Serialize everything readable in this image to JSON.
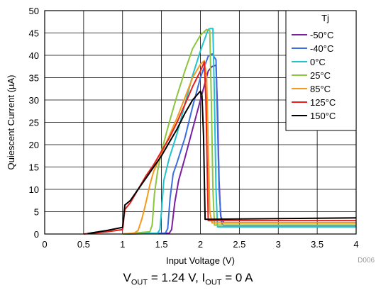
{
  "chart_data": {
    "type": "line",
    "xlabel": "Input Voltage (V)",
    "ylabel": "Quiescent Current (µA)",
    "xlim": [
      0,
      4
    ],
    "ylim": [
      0,
      50
    ],
    "xticks": [
      0,
      0.5,
      1,
      1.5,
      2,
      2.5,
      3,
      3.5,
      4
    ],
    "xtick_labels": [
      "0",
      "0.5",
      "1",
      "1.5",
      "2",
      "2.5",
      "3",
      "3.5",
      "4"
    ],
    "yticks": [
      0,
      5,
      10,
      15,
      20,
      25,
      30,
      35,
      40,
      45,
      50
    ],
    "ytick_labels": [
      "0",
      "5",
      "10",
      "15",
      "20",
      "25",
      "30",
      "35",
      "40",
      "45",
      "50"
    ],
    "grid": true,
    "legend_title": "Tj",
    "legend_position": "top-right",
    "figure_id": "D006",
    "series": [
      {
        "name": "-50°C",
        "color": "#7b1fa2",
        "x": [
          1.0,
          1.6,
          1.63,
          1.67,
          1.72,
          1.8,
          1.9,
          2.0,
          2.1,
          2.15,
          2.2,
          2.22,
          2.24,
          2.26,
          2.3,
          4.0
        ],
        "y": [
          0,
          0.2,
          1.0,
          7.0,
          12.0,
          17.0,
          23.5,
          30.0,
          36.5,
          37.5,
          37.8,
          28.0,
          12.0,
          4.0,
          2.5,
          2.5
        ]
      },
      {
        "name": "-40°C",
        "color": "#3b6fe0",
        "x": [
          1.0,
          1.55,
          1.58,
          1.61,
          1.65,
          1.7,
          1.8,
          1.9,
          2.0,
          2.1,
          2.15,
          2.2,
          2.22,
          2.24,
          2.27,
          2.3,
          4.0
        ],
        "y": [
          0,
          0.2,
          1.2,
          8.0,
          13.5,
          16.0,
          21.5,
          28.5,
          35.0,
          39.8,
          40.3,
          39.0,
          25.0,
          10.0,
          2.5,
          1.8,
          1.8
        ]
      },
      {
        "name": "0°C",
        "color": "#1fc4cc",
        "x": [
          1.0,
          1.45,
          1.48,
          1.5,
          1.53,
          1.6,
          1.7,
          1.8,
          1.9,
          2.0,
          2.1,
          2.13,
          2.16,
          2.18,
          2.2,
          2.22,
          4.0
        ],
        "y": [
          0,
          0.2,
          1.0,
          5.0,
          12.0,
          17.0,
          22.5,
          29.0,
          35.5,
          41.0,
          45.8,
          46.0,
          46.0,
          30.0,
          10.0,
          1.6,
          1.6
        ]
      },
      {
        "name": "25°C",
        "color": "#8cc63f",
        "x": [
          1.0,
          1.35,
          1.38,
          1.41,
          1.45,
          1.5,
          1.6,
          1.7,
          1.8,
          1.9,
          2.0,
          2.08,
          2.12,
          2.14,
          2.16,
          2.18,
          4.0
        ],
        "y": [
          0,
          0.5,
          2.0,
          9.0,
          14.0,
          18.5,
          25.0,
          31.0,
          36.5,
          41.5,
          44.5,
          45.8,
          45.5,
          30.0,
          10.0,
          2.0,
          2.0
        ]
      },
      {
        "name": "85°C",
        "color": "#f59a1d",
        "x": [
          1.0,
          1.15,
          1.2,
          1.25,
          1.3,
          1.35,
          1.4,
          1.5,
          1.6,
          1.7,
          1.8,
          1.9,
          2.0,
          2.05,
          2.08,
          2.1,
          2.12,
          2.15,
          4.0
        ],
        "y": [
          0,
          0.2,
          0.8,
          3.5,
          7.0,
          11.0,
          14.0,
          18.0,
          22.0,
          26.0,
          30.5,
          35.0,
          38.0,
          38.8,
          35.0,
          20.0,
          5.0,
          2.5,
          2.5
        ]
      },
      {
        "name": "125°C",
        "color": "#e8211c",
        "x": [
          0.5,
          0.8,
          1.0,
          1.03,
          1.1,
          1.2,
          1.3,
          1.4,
          1.5,
          1.6,
          1.7,
          1.8,
          1.9,
          2.0,
          2.05,
          2.07,
          2.1,
          4.0
        ],
        "y": [
          0,
          0.5,
          1.0,
          5.5,
          7.0,
          10.0,
          13.0,
          15.5,
          18.5,
          21.5,
          25.0,
          29.0,
          33.0,
          36.5,
          38.5,
          30.0,
          3.0,
          3.0
        ]
      },
      {
        "name": "150°C",
        "color": "#000000",
        "x": [
          0.55,
          0.8,
          1.0,
          1.03,
          1.1,
          1.2,
          1.3,
          1.4,
          1.5,
          1.6,
          1.7,
          1.8,
          1.9,
          2.0,
          2.02,
          2.04,
          2.06,
          2.1,
          4.0
        ],
        "y": [
          0.1,
          0.8,
          1.5,
          6.5,
          7.5,
          10.0,
          12.5,
          15.0,
          17.5,
          20.5,
          23.5,
          27.0,
          30.0,
          32.0,
          31.0,
          22.0,
          3.3,
          3.3,
          3.6
        ]
      }
    ]
  },
  "caption": {
    "v_main": "V",
    "v_sub": "OUT",
    "v_rest": " = 1.24 V, ",
    "i_main": "I",
    "i_sub": "OUT",
    "i_rest": " = 0 A"
  }
}
